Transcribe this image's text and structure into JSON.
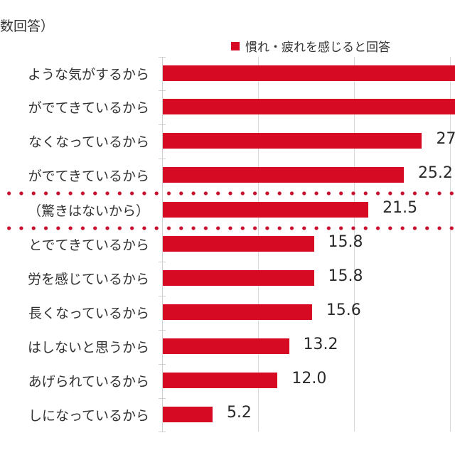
{
  "chart_data": {
    "type": "bar",
    "orientation": "horizontal",
    "title": "（…数回答）",
    "title_visible_text": "数回答）",
    "xlabel": "",
    "ylabel": "",
    "xlim": [
      0,
      30
    ],
    "gridlines_x": [
      10,
      20,
      30
    ],
    "grid": true,
    "legend": {
      "position": "top-right",
      "entries": [
        "慣れ・疲れを感じると回答"
      ]
    },
    "categories": [
      "…ような気がするから",
      "…がでてきているから",
      "…なくなっているから",
      "…がでてきているから",
      "（驚きはないから）",
      "…とでてきているから",
      "…労を感じているから",
      "…長くなっているから",
      "…はしないと思うから",
      "…あげられているから",
      "…しになっているから"
    ],
    "series": [
      {
        "name": "慣れ・疲れを感じると回答",
        "color": "#d70a24",
        "values": [
          31.5,
          31.0,
          27.1,
          25.2,
          21.5,
          15.8,
          15.8,
          15.6,
          13.2,
          12.0,
          5.2
        ],
        "value_labels": [
          "",
          "",
          "27",
          "25.2",
          "21.5",
          "15.8",
          "15.8",
          "15.6",
          "13.2",
          "12.0",
          "5.2"
        ],
        "note": "First two bars extend beyond the visible crop; their labels are not visible. Third label partially cropped."
      }
    ],
    "annotations": [
      {
        "type": "dotted-box",
        "around_category": "（驚きはないから）",
        "color": "#c8102e"
      }
    ]
  },
  "header": {
    "title": "数回答）"
  },
  "legend": {
    "label": "慣れ・疲れを感じると回答",
    "color": "#d70a24"
  },
  "rows": [
    {
      "label": "ような気がするから",
      "value": 31.5,
      "value_label": ""
    },
    {
      "label": "がでてきているから",
      "value": 31.0,
      "value_label": ""
    },
    {
      "label": "なくなっているから",
      "value": 27.1,
      "value_label": "27"
    },
    {
      "label": "がでてきているから",
      "value": 25.2,
      "value_label": "25.2"
    },
    {
      "label": "（驚きはないから）",
      "value": 21.5,
      "value_label": "21.5"
    },
    {
      "label": "とでてきているから",
      "value": 15.8,
      "value_label": "15.8"
    },
    {
      "label": "労を感じているから",
      "value": 15.8,
      "value_label": "15.8"
    },
    {
      "label": "長くなっているから",
      "value": 15.6,
      "value_label": "15.6"
    },
    {
      "label": "はしないと思うから",
      "value": 13.2,
      "value_label": "13.2"
    },
    {
      "label": "あげられているから",
      "value": 12.0,
      "value_label": "12.0"
    },
    {
      "label": "しになっているから",
      "value": 5.2,
      "value_label": "5.2"
    }
  ]
}
